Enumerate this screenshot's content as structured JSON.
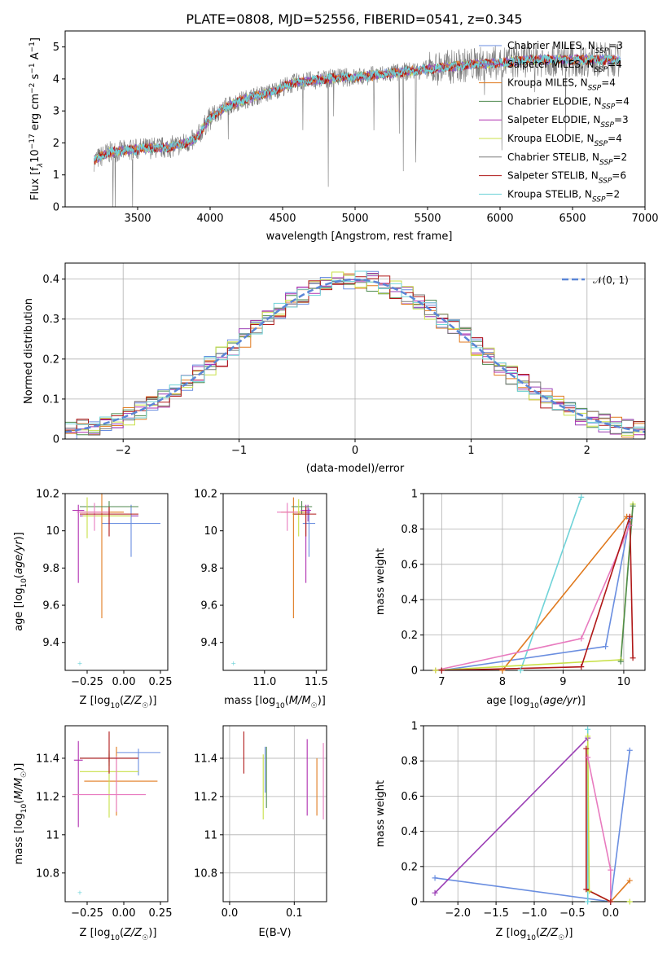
{
  "title": "PLATE=0808, MJD=52556, FIBERID=0541, z=0.345",
  "colors": {
    "chabrier_miles": "#6a8ee0",
    "salpeter_miles": "#9b3fb5",
    "kroupa_miles": "#e07a1f",
    "chabrier_elodie": "#4f8a4f",
    "salpeter_elodie": "#b030b0",
    "kroupa_elodie": "#c8e048",
    "chabrier_stelib": "#7a7a7a",
    "salpeter_stelib": "#b01818",
    "kroupa_stelib": "#6fd3d8",
    "pink": "#e87bbf",
    "normal": "#5b86d6"
  },
  "chart_data": [
    {
      "type": "line",
      "panel": "spectrum",
      "xlabel": "wavelength [Angstrom, rest frame]",
      "ylabel_parts": [
        "Flux [f",
        "λ",
        "10",
        "−17",
        " erg cm",
        "−2",
        " s",
        "−1",
        " A",
        "−1",
        "]"
      ],
      "xlim": [
        3000,
        7000
      ],
      "ylim": [
        0,
        5.5
      ],
      "xticks": [
        3500,
        4000,
        4500,
        5000,
        5500,
        6000,
        6500,
        7000
      ],
      "yticks": [
        0,
        1,
        2,
        3,
        4,
        5
      ],
      "legend": [
        {
          "label": "Chabrier MILES, N",
          "sub": "SSP",
          "suffix": "=3",
          "color_key": "chabrier_miles"
        },
        {
          "label": "Salpeter MILES, N",
          "sub": "SSP",
          "suffix": "=4",
          "color_key": "salpeter_miles"
        },
        {
          "label": "Kroupa MILES, N",
          "sub": "SSP",
          "suffix": "=4",
          "color_key": "kroupa_miles"
        },
        {
          "label": "Chabrier ELODIE, N",
          "sub": "SSP",
          "suffix": "=4",
          "color_key": "chabrier_elodie"
        },
        {
          "label": "Salpeter ELODIE, N",
          "sub": "SSP",
          "suffix": "=3",
          "color_key": "salpeter_elodie"
        },
        {
          "label": "Kroupa ELODIE, N",
          "sub": "SSP",
          "suffix": "=4",
          "color_key": "kroupa_elodie"
        },
        {
          "label": "Chabrier STELIB, N",
          "sub": "SSP",
          "suffix": "=2",
          "color_key": "chabrier_stelib"
        },
        {
          "label": "Salpeter STELIB, N",
          "sub": "SSP",
          "suffix": "=6",
          "color_key": "salpeter_stelib"
        },
        {
          "label": "Kroupa STELIB, N",
          "sub": "SSP",
          "suffix": "=2",
          "color_key": "kroupa_stelib"
        }
      ],
      "continuum": {
        "x": [
          3200,
          3300,
          3400,
          3500,
          3600,
          3700,
          3800,
          3900,
          4000,
          4100,
          4200,
          4300,
          4400,
          4500,
          4600,
          4700,
          4800,
          4900,
          5000,
          5200,
          5400,
          5600,
          5800,
          6000,
          6200,
          6400,
          6600,
          6800
        ],
        "y": [
          1.45,
          1.7,
          1.75,
          1.8,
          1.85,
          1.85,
          1.95,
          2.1,
          2.8,
          3.1,
          3.3,
          3.45,
          3.55,
          3.75,
          3.9,
          3.95,
          4.0,
          4.05,
          4.05,
          4.15,
          4.25,
          4.35,
          4.45,
          4.5,
          4.6,
          4.6,
          4.6,
          4.6
        ]
      }
    },
    {
      "type": "step",
      "panel": "residual-histogram",
      "xlabel": "(data-model)/error",
      "ylabel": "Normed distribution",
      "xlim": [
        -2.5,
        2.5
      ],
      "ylim": [
        0,
        0.44
      ],
      "xticks": [
        -2,
        -1,
        0,
        1,
        2
      ],
      "yticks": [
        0.0,
        0.1,
        0.2,
        0.3,
        0.4
      ],
      "legend_label": "𝒩(0, 1)",
      "bin_width": 0.1
    },
    {
      "type": "errorbar",
      "panel": "age-vs-Z",
      "xlabel": "Z [log10(Z/Z☉)]",
      "xlabel_parts": [
        "Z [log",
        "10",
        "(",
        "Z/Z",
        "☉",
        ")]"
      ],
      "ylabel_parts": [
        "age  [log",
        "10",
        "(",
        "age/yr",
        ")]"
      ],
      "xlim": [
        -0.4,
        0.3
      ],
      "ylim": [
        9.25,
        10.2
      ],
      "xticks": [
        -0.25,
        0.0,
        0.25
      ],
      "xtick_labels": [
        "−0.25",
        "0.00",
        "0.25"
      ],
      "yticks": [
        9.4,
        9.6,
        9.8,
        10.0,
        10.2
      ],
      "points": [
        {
          "x": 0.05,
          "y": 10.04,
          "xerr": [
            0.2,
            0.2
          ],
          "yerr": [
            0.18,
            0.1
          ],
          "c": "chabrier_miles"
        },
        {
          "x": -0.1,
          "y": 10.08,
          "xerr": [
            0.2,
            0.2
          ],
          "yerr": [
            0.04,
            0.04
          ],
          "c": "salpeter_miles"
        },
        {
          "x": -0.15,
          "y": 10.1,
          "xerr": [
            0.15,
            0.15
          ],
          "yerr": [
            0.57,
            0.1
          ],
          "c": "kroupa_miles"
        },
        {
          "x": -0.1,
          "y": 10.13,
          "xerr": [
            0.2,
            0.2
          ],
          "yerr": [
            0.04,
            0.03
          ],
          "c": "chabrier_elodie"
        },
        {
          "x": -0.31,
          "y": 10.11,
          "xerr": [
            0.04,
            0.04
          ],
          "yerr": [
            0.39,
            0.03
          ],
          "c": "salpeter_elodie"
        },
        {
          "x": -0.25,
          "y": 10.08,
          "xerr": [
            0.03,
            0.3
          ],
          "yerr": [
            0.12,
            0.1
          ],
          "c": "kroupa_elodie"
        },
        {
          "x": -0.2,
          "y": 10.1,
          "xerr": [
            0.12,
            0.1
          ],
          "yerr": [
            0.1,
            0.05
          ],
          "c": "pink"
        },
        {
          "x": -0.1,
          "y": 10.09,
          "xerr": [
            0.2,
            0.2
          ],
          "yerr": [
            0.12,
            0.04
          ],
          "c": "salpeter_stelib"
        },
        {
          "x": -0.3,
          "y": 9.29,
          "xerr": [
            0.0,
            0.0
          ],
          "yerr": [
            0.0,
            0.0
          ],
          "c": "kroupa_stelib"
        }
      ]
    },
    {
      "type": "errorbar",
      "panel": "age-vs-mass",
      "xlabel_parts": [
        "mass [log",
        "10",
        "(",
        "M/M",
        "☉",
        ")]"
      ],
      "xlim": [
        10.6,
        11.6
      ],
      "ylim": [
        9.25,
        10.2
      ],
      "xticks": [
        11.0,
        11.5
      ],
      "xtick_labels": [
        "11.0",
        "11.5"
      ],
      "yticks": [
        9.4,
        9.6,
        9.8,
        10.0,
        10.2
      ],
      "points": [
        {
          "x": 11.43,
          "y": 10.04,
          "xerr": [
            0.06,
            0.06
          ],
          "yerr": [
            0.18,
            0.08
          ],
          "c": "chabrier_miles"
        },
        {
          "x": 11.42,
          "y": 10.1,
          "xerr": [
            0.02,
            0.02
          ],
          "yerr": [
            0.05,
            0.04
          ],
          "c": "salpeter_miles"
        },
        {
          "x": 11.28,
          "y": 10.1,
          "xerr": [
            0.12,
            0.12
          ],
          "yerr": [
            0.57,
            0.08
          ],
          "c": "kroupa_miles"
        },
        {
          "x": 11.36,
          "y": 10.13,
          "xerr": [
            0.1,
            0.1
          ],
          "yerr": [
            0.04,
            0.03
          ],
          "c": "chabrier_elodie"
        },
        {
          "x": 11.4,
          "y": 10.11,
          "xerr": [
            0.05,
            0.05
          ],
          "yerr": [
            0.39,
            0.03
          ],
          "c": "salpeter_elodie"
        },
        {
          "x": 11.33,
          "y": 10.09,
          "xerr": [
            0.06,
            0.06
          ],
          "yerr": [
            0.12,
            0.08
          ],
          "c": "kroupa_elodie"
        },
        {
          "x": 11.22,
          "y": 10.1,
          "xerr": [
            0.1,
            0.1
          ],
          "yerr": [
            0.1,
            0.05
          ],
          "c": "pink"
        },
        {
          "x": 11.4,
          "y": 10.09,
          "xerr": [
            0.12,
            0.1
          ],
          "yerr": [
            0.12,
            0.04
          ],
          "c": "salpeter_stelib"
        },
        {
          "x": 10.7,
          "y": 9.29,
          "xerr": [
            0.0,
            0.0
          ],
          "yerr": [
            0.0,
            0.0
          ],
          "c": "kroupa_stelib"
        }
      ]
    },
    {
      "type": "line",
      "panel": "mass-weight-vs-age",
      "xlabel_parts": [
        "age  [log",
        "10",
        "(",
        "age/yr",
        ")]"
      ],
      "ylabel": "mass weight",
      "xlim": [
        6.7,
        10.35
      ],
      "ylim": [
        0,
        1.0
      ],
      "xticks": [
        7,
        8,
        9,
        10
      ],
      "yticks": [
        0.0,
        0.2,
        0.4,
        0.6,
        0.8,
        1.0
      ],
      "series": [
        {
          "c": "chabrier_miles",
          "x": [
            7.0,
            9.7,
            10.1
          ],
          "y": [
            0.0,
            0.135,
            0.86
          ]
        },
        {
          "c": "kroupa_miles",
          "x": [
            6.9,
            8.0,
            10.05
          ],
          "y": [
            0.0,
            0.0,
            0.87
          ]
        },
        {
          "c": "kroupa_stelib",
          "x": [
            8.3,
            9.3
          ],
          "y": [
            0.0,
            0.98
          ]
        },
        {
          "c": "pink",
          "x": [
            6.9,
            9.3,
            10.1
          ],
          "y": [
            0.0,
            0.18,
            0.82
          ]
        },
        {
          "c": "kroupa_elodie",
          "x": [
            6.9,
            9.95,
            10.15
          ],
          "y": [
            0.0,
            0.06,
            0.94
          ]
        },
        {
          "c": "chabrier_elodie",
          "x": [
            9.95,
            10.15
          ],
          "y": [
            0.05,
            0.93
          ]
        },
        {
          "c": "salpeter_stelib",
          "x": [
            7.0,
            9.3,
            10.1,
            10.15
          ],
          "y": [
            0.0,
            0.02,
            0.87,
            0.07
          ]
        }
      ]
    },
    {
      "type": "errorbar",
      "panel": "mass-vs-Z",
      "xlabel_parts": [
        "Z [log",
        "10",
        "(",
        "Z/Z",
        "☉",
        ")]"
      ],
      "ylabel_parts": [
        "mass [log",
        "10",
        "(",
        "M/M",
        "☉",
        ")]"
      ],
      "xlim": [
        -0.4,
        0.3
      ],
      "ylim": [
        10.65,
        11.57
      ],
      "xticks": [
        -0.25,
        0.0,
        0.25
      ],
      "xtick_labels": [
        "−0.25",
        "0.00",
        "0.25"
      ],
      "yticks": [
        10.8,
        11.0,
        11.2,
        11.4
      ],
      "points": [
        {
          "x": 0.1,
          "y": 11.43,
          "xerr": [
            0.15,
            0.15
          ],
          "yerr": [
            0.12,
            0.02
          ],
          "c": "chabrier_miles"
        },
        {
          "x": -0.1,
          "y": 11.4,
          "xerr": [
            0.2,
            0.2
          ],
          "yerr": [
            0.02,
            0.02
          ],
          "c": "salpeter_miles"
        },
        {
          "x": -0.05,
          "y": 11.28,
          "xerr": [
            0.22,
            0.28
          ],
          "yerr": [
            0.18,
            0.18
          ],
          "c": "kroupa_miles"
        },
        {
          "x": -0.1,
          "y": 11.4,
          "xerr": [
            0.2,
            0.2
          ],
          "yerr": [
            0.04,
            0.04
          ],
          "c": "chabrier_elodie"
        },
        {
          "x": -0.31,
          "y": 11.39,
          "xerr": [
            0.03,
            0.03
          ],
          "yerr": [
            0.35,
            0.1
          ],
          "c": "salpeter_elodie"
        },
        {
          "x": -0.1,
          "y": 11.33,
          "xerr": [
            0.2,
            0.2
          ],
          "yerr": [
            0.24,
            0.1
          ],
          "c": "kroupa_elodie"
        },
        {
          "x": -0.05,
          "y": 11.21,
          "xerr": [
            0.3,
            0.2
          ],
          "yerr": [
            0.09,
            0.2
          ],
          "c": "pink"
        },
        {
          "x": -0.1,
          "y": 11.4,
          "xerr": [
            0.2,
            0.2
          ],
          "yerr": [
            0.08,
            0.14
          ],
          "c": "salpeter_stelib"
        },
        {
          "x": -0.3,
          "y": 10.7,
          "xerr": [
            0.0,
            0.0
          ],
          "yerr": [
            0.0,
            0.0
          ],
          "c": "kroupa_stelib"
        }
      ]
    },
    {
      "type": "errorbar",
      "panel": "mass-vs-ebv",
      "xlabel": "E(B-V)",
      "xlim": [
        -0.01,
        0.15
      ],
      "ylim": [
        10.65,
        11.57
      ],
      "xticks": [
        0.0,
        0.1
      ],
      "xtick_labels": [
        "0.0",
        "0.1"
      ],
      "yticks": [
        10.8,
        11.0,
        11.2,
        11.4
      ],
      "points": [
        {
          "x": 0.055,
          "y": 11.34,
          "yerr": [
            0.12,
            0.12
          ],
          "c": "chabrier_miles"
        },
        {
          "x": 0.12,
          "y": 11.3,
          "yerr": [
            0.2,
            0.2
          ],
          "c": "salpeter_elodie"
        },
        {
          "x": 0.135,
          "y": 11.25,
          "yerr": [
            0.15,
            0.15
          ],
          "c": "kroupa_miles"
        },
        {
          "x": 0.057,
          "y": 11.3,
          "yerr": [
            0.16,
            0.16
          ],
          "c": "chabrier_elodie"
        },
        {
          "x": 0.052,
          "y": 11.25,
          "yerr": [
            0.17,
            0.17
          ],
          "c": "kroupa_elodie"
        },
        {
          "x": 0.145,
          "y": 11.28,
          "yerr": [
            0.2,
            0.2
          ],
          "c": "pink"
        },
        {
          "x": 0.022,
          "y": 11.43,
          "yerr": [
            0.11,
            0.11
          ],
          "c": "salpeter_stelib"
        }
      ]
    },
    {
      "type": "line",
      "panel": "mass-weight-vs-Z",
      "xlabel_parts": [
        "Z [log",
        "10",
        "(",
        "Z/Z",
        "☉",
        ")]"
      ],
      "ylabel": "mass weight",
      "xlim": [
        -2.45,
        0.45
      ],
      "ylim": [
        0,
        1.0
      ],
      "xticks": [
        -2.0,
        -1.5,
        -1.0,
        -0.5,
        0.0
      ],
      "xtick_labels": [
        "−2.0",
        "−1.5",
        "−1.0",
        "−0.5",
        "0.0"
      ],
      "yticks": [
        0.0,
        0.2,
        0.4,
        0.6,
        0.8,
        1.0
      ],
      "series": [
        {
          "c": "chabrier_miles",
          "x": [
            -2.3,
            0.0,
            0.25
          ],
          "y": [
            0.135,
            0.0,
            0.86
          ]
        },
        {
          "c": "salpeter_miles",
          "x": [
            -2.3,
            -0.3
          ],
          "y": [
            0.05,
            0.93
          ]
        },
        {
          "c": "kroupa_miles",
          "x": [
            0.0,
            0.25
          ],
          "y": [
            0.0,
            0.12
          ]
        },
        {
          "c": "kroupa_stelib",
          "x": [
            -0.3,
            -0.3,
            0.0
          ],
          "y": [
            0.98,
            0.0,
            0.0
          ]
        },
        {
          "c": "kroupa_elodie",
          "x": [
            -0.3,
            -0.28,
            0.0,
            0.25
          ],
          "y": [
            0.94,
            0.06,
            0.0,
            0.0
          ]
        },
        {
          "c": "pink",
          "x": [
            -0.3,
            0.0,
            0.0
          ],
          "y": [
            0.82,
            0.18,
            0.0
          ]
        },
        {
          "c": "salpeter_stelib",
          "x": [
            -0.32,
            -0.32,
            0.0
          ],
          "y": [
            0.87,
            0.07,
            0.0
          ]
        }
      ]
    }
  ]
}
